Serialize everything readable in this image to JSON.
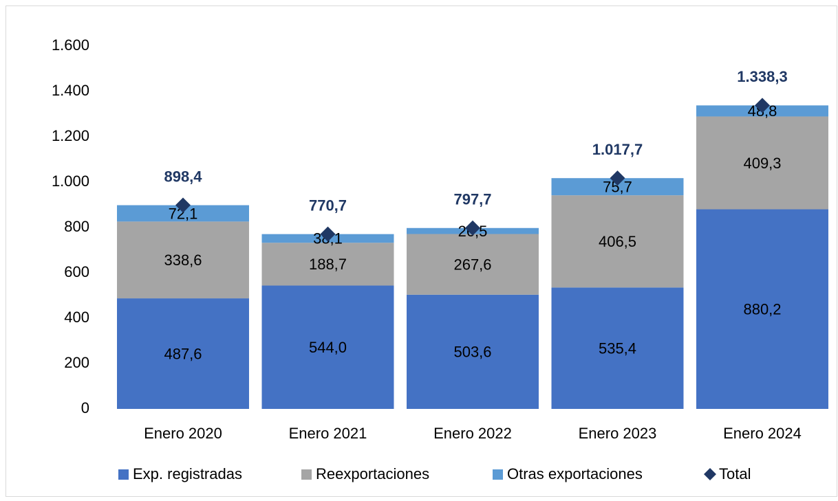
{
  "chart_data": {
    "type": "bar",
    "stacked": true,
    "categories": [
      "Enero 2020",
      "Enero 2021",
      "Enero 2022",
      "Enero 2023",
      "Enero 2024"
    ],
    "series": [
      {
        "name": "Exp. registradas",
        "color": "#4472c4",
        "values": [
          487.6,
          544.0,
          503.6,
          535.4,
          880.2
        ],
        "value_labels": [
          "487,6",
          "544,0",
          "503,6",
          "535,4",
          "880,2"
        ]
      },
      {
        "name": "Reexportaciones",
        "color": "#a5a5a5",
        "values": [
          338.6,
          188.7,
          267.6,
          406.5,
          409.3
        ],
        "value_labels": [
          "338,6",
          "188,7",
          "267,6",
          "406,5",
          "409,3"
        ]
      },
      {
        "name": "Otras exportaciones",
        "color": "#5b9bd5",
        "values": [
          72.1,
          38.1,
          26.5,
          75.7,
          48.8
        ],
        "value_labels": [
          "72,1",
          "38,1",
          "26,5",
          "75,7",
          "48,8"
        ]
      },
      {
        "name": "Total",
        "color": "#203864",
        "marker": "diamond",
        "values": [
          898.4,
          770.7,
          797.7,
          1017.7,
          1338.3
        ],
        "value_labels": [
          "898,4",
          "770,7",
          "797,7",
          "1.017,7",
          "1.338,3"
        ]
      }
    ],
    "ylim": [
      0,
      1600
    ],
    "yticks": [
      0,
      200,
      400,
      600,
      800,
      {
        "value": 1000,
        "label": "1.000"
      },
      {
        "value": 1200,
        "label": "1.200"
      },
      {
        "value": 1400,
        "label": "1.400"
      },
      {
        "value": 1600,
        "label": "1.600"
      }
    ],
    "grid": false,
    "legend": "bottom"
  }
}
